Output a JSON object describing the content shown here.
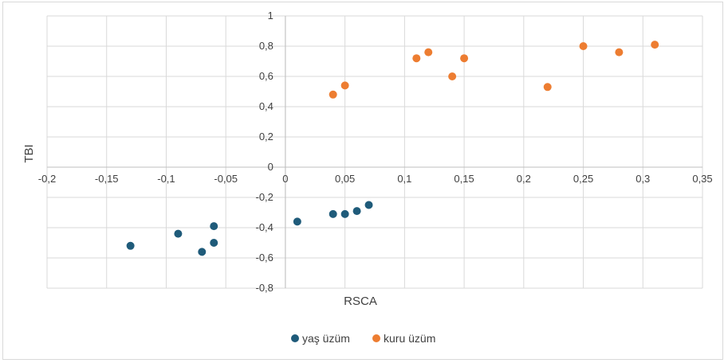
{
  "chart_data": {
    "type": "scatter",
    "title": "",
    "xlabel": "RSCA",
    "ylabel": "TBI",
    "xlim": [
      -0.2,
      0.35
    ],
    "ylim": [
      -0.8,
      1
    ],
    "x_ticks": [
      "-0,2",
      "-0,15",
      "-0,1",
      "-0,05",
      "0",
      "0,05",
      "0,1",
      "0,15",
      "0,2",
      "0,25",
      "0,3",
      "0,35"
    ],
    "x_tick_values": [
      -0.2,
      -0.15,
      -0.1,
      -0.05,
      0,
      0.05,
      0.1,
      0.15,
      0.2,
      0.25,
      0.3,
      0.35
    ],
    "y_ticks": [
      "-0,8",
      "-0,6",
      "-0,4",
      "-0,2",
      "0",
      "0,2",
      "0,4",
      "0,6",
      "0,8",
      "1"
    ],
    "y_tick_values": [
      -0.8,
      -0.6,
      -0.4,
      -0.2,
      0,
      0.2,
      0.4,
      0.6,
      0.8,
      1
    ],
    "grid": true,
    "legend_position": "bottom",
    "series": [
      {
        "name": "yaş üzüm",
        "color": "#1f5b7a",
        "points": [
          {
            "x": -0.13,
            "y": -0.52
          },
          {
            "x": -0.09,
            "y": -0.44
          },
          {
            "x": -0.07,
            "y": -0.56
          },
          {
            "x": -0.06,
            "y": -0.5
          },
          {
            "x": -0.06,
            "y": -0.39
          },
          {
            "x": 0.01,
            "y": -0.36
          },
          {
            "x": 0.04,
            "y": -0.31
          },
          {
            "x": 0.05,
            "y": -0.31
          },
          {
            "x": 0.06,
            "y": -0.29
          },
          {
            "x": 0.07,
            "y": -0.25
          }
        ]
      },
      {
        "name": "kuru üzüm",
        "color": "#ed7d31",
        "points": [
          {
            "x": 0.04,
            "y": 0.48
          },
          {
            "x": 0.05,
            "y": 0.54
          },
          {
            "x": 0.11,
            "y": 0.72
          },
          {
            "x": 0.12,
            "y": 0.76
          },
          {
            "x": 0.14,
            "y": 0.6
          },
          {
            "x": 0.15,
            "y": 0.72
          },
          {
            "x": 0.22,
            "y": 0.53
          },
          {
            "x": 0.25,
            "y": 0.8
          },
          {
            "x": 0.28,
            "y": 0.76
          },
          {
            "x": 0.31,
            "y": 0.81
          }
        ]
      }
    ]
  }
}
